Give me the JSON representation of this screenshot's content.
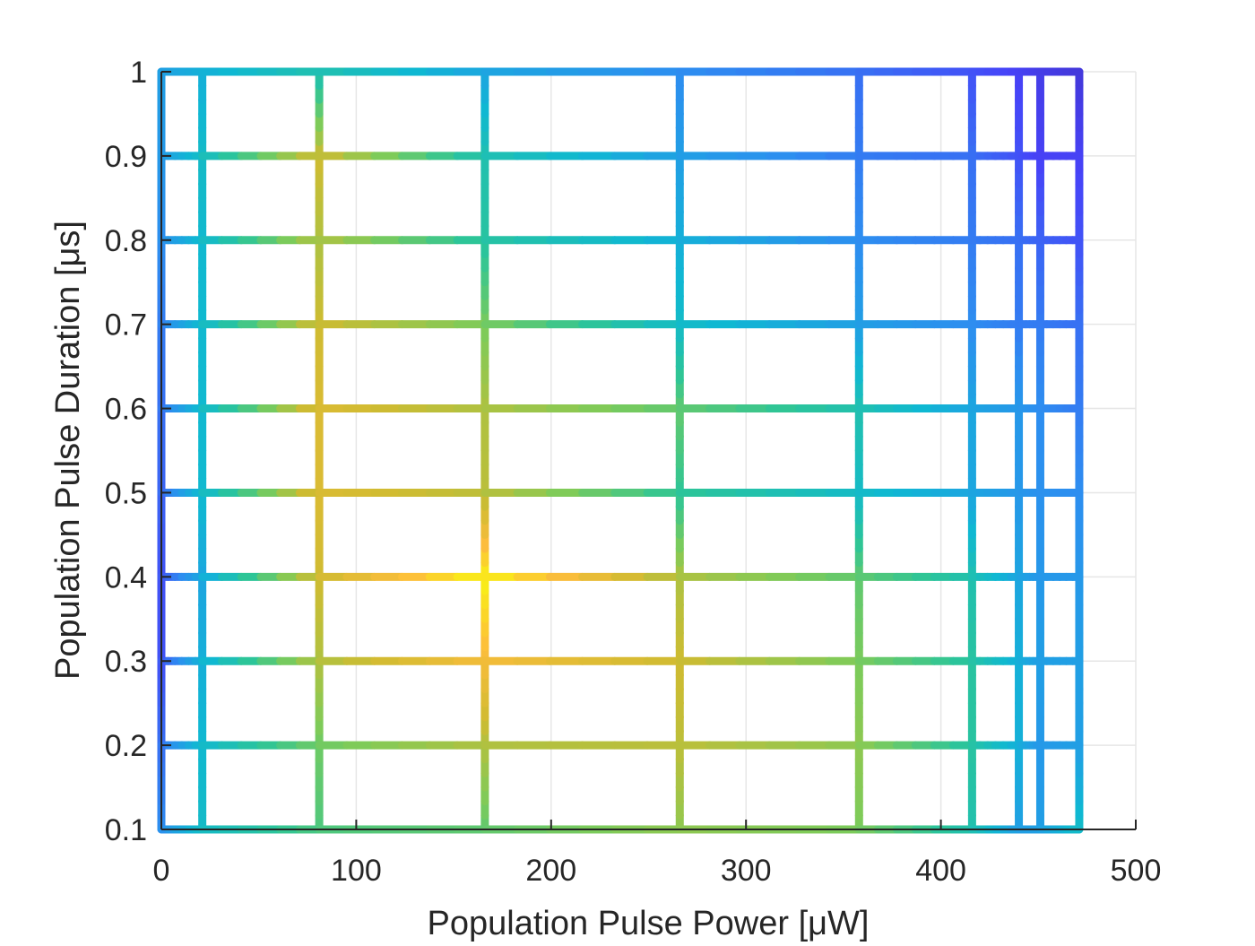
{
  "chart_data": {
    "type": "line",
    "xlabel": "Population Pulse Power [μW]",
    "ylabel": "Population Pulse Duration [μs]",
    "xlim": [
      0,
      500
    ],
    "ylim": [
      0.1,
      1
    ],
    "xticks": [
      0,
      100,
      200,
      300,
      400,
      500
    ],
    "xtick_labels": [
      "0",
      "100",
      "200",
      "300",
      "400",
      "500"
    ],
    "yticks": [
      0.1,
      0.2,
      0.3,
      0.4,
      0.5,
      0.6,
      0.7,
      0.8,
      0.9,
      1
    ],
    "ytick_labels": [
      "0.1",
      "0.2",
      "0.3",
      "0.4",
      "0.5",
      "0.6",
      "0.7",
      "0.8",
      "0.9",
      "1"
    ],
    "grid": true,
    "colormap": "parula",
    "colormap_stops": [
      "#3e26a8",
      "#4743f8",
      "#2d8ef0",
      "#0fb8d2",
      "#2dc597",
      "#7ecb59",
      "#cfbb31",
      "#fdbd3c",
      "#f8fa0d"
    ],
    "power_levels": [
      0,
      21,
      81,
      166,
      266,
      358,
      416,
      440,
      451,
      471
    ],
    "duration_levels": [
      0.1,
      0.2,
      0.3,
      0.4,
      0.5,
      0.6,
      0.7,
      0.8,
      0.9,
      1.0
    ],
    "color_value_grid": [
      [
        0.25,
        0.4,
        0.55,
        0.58,
        0.65,
        0.62,
        0.45,
        0.3,
        0.3,
        0.4
      ],
      [
        0.2,
        0.38,
        0.6,
        0.7,
        0.72,
        0.65,
        0.48,
        0.35,
        0.28,
        0.3
      ],
      [
        0.15,
        0.35,
        0.7,
        0.85,
        0.75,
        0.62,
        0.48,
        0.35,
        0.3,
        0.3
      ],
      [
        0.15,
        0.32,
        0.75,
        0.98,
        0.7,
        0.58,
        0.45,
        0.32,
        0.28,
        0.28
      ],
      [
        0.18,
        0.38,
        0.78,
        0.72,
        0.5,
        0.4,
        0.32,
        0.28,
        0.26,
        0.25
      ],
      [
        0.2,
        0.38,
        0.78,
        0.7,
        0.58,
        0.45,
        0.32,
        0.28,
        0.25,
        0.22
      ],
      [
        0.22,
        0.38,
        0.75,
        0.62,
        0.4,
        0.3,
        0.25,
        0.22,
        0.22,
        0.2
      ],
      [
        0.25,
        0.38,
        0.7,
        0.48,
        0.35,
        0.25,
        0.22,
        0.2,
        0.18,
        0.15
      ],
      [
        0.28,
        0.4,
        0.75,
        0.45,
        0.3,
        0.22,
        0.2,
        0.15,
        0.12,
        0.12
      ],
      [
        0.3,
        0.35,
        0.45,
        0.32,
        0.25,
        0.2,
        0.15,
        0.12,
        0.1,
        0.08
      ]
    ]
  }
}
